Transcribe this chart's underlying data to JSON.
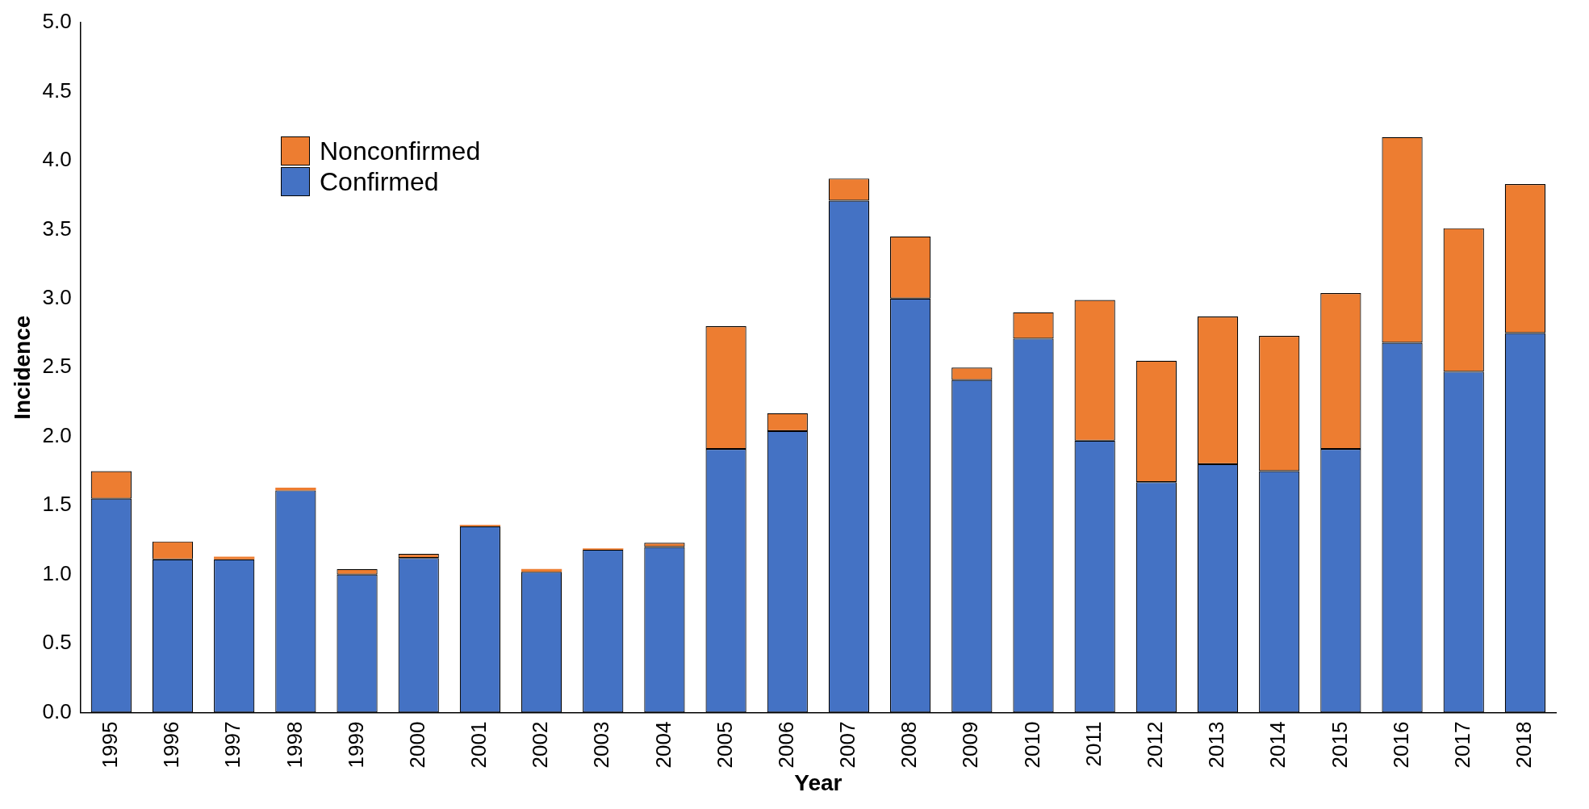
{
  "chart_data": {
    "type": "bar",
    "stacked": true,
    "xlabel": "Year",
    "ylabel": "Incidence",
    "categories": [
      "1995",
      "1996",
      "1997",
      "1998",
      "1999",
      "2000",
      "2001",
      "2002",
      "2003",
      "2004",
      "2005",
      "2006",
      "2007",
      "2008",
      "2009",
      "2010",
      "2011",
      "2012",
      "2013",
      "2014",
      "2015",
      "2016",
      "2017",
      "2018"
    ],
    "series": [
      {
        "name": "Confirmed",
        "color": "#4472c4",
        "values": [
          1.55,
          1.11,
          1.11,
          1.61,
          1.0,
          1.12,
          1.35,
          1.02,
          1.18,
          1.2,
          1.91,
          2.04,
          3.71,
          3.0,
          2.41,
          2.71,
          1.97,
          1.67,
          1.8,
          1.75,
          1.91,
          2.68,
          2.47,
          2.75
        ]
      },
      {
        "name": "Nonconfirmed",
        "color": "#ed7d31",
        "values": [
          0.2,
          0.13,
          0.02,
          0.02,
          0.04,
          0.03,
          0.01,
          0.02,
          0.01,
          0.03,
          0.89,
          0.13,
          0.16,
          0.45,
          0.09,
          0.19,
          1.02,
          0.88,
          1.07,
          0.98,
          1.13,
          1.49,
          1.04,
          1.08
        ]
      }
    ],
    "ylim": [
      0,
      5
    ],
    "yticks": [
      {
        "value": 0,
        "label": "0.0"
      },
      {
        "value": 0.5,
        "label": "0.5"
      },
      {
        "value": 1,
        "label": "1.0"
      },
      {
        "value": 1.5,
        "label": "1.5"
      },
      {
        "value": 2,
        "label": "2.0"
      },
      {
        "value": 2.5,
        "label": "2.5"
      },
      {
        "value": 3,
        "label": "3.0"
      },
      {
        "value": 3.5,
        "label": "3.5"
      },
      {
        "value": 4,
        "label": "4.0"
      },
      {
        "value": 4.5,
        "label": "4.5"
      },
      {
        "value": 5,
        "label": "5.0"
      }
    ],
    "grid": false,
    "legend": "top left"
  }
}
